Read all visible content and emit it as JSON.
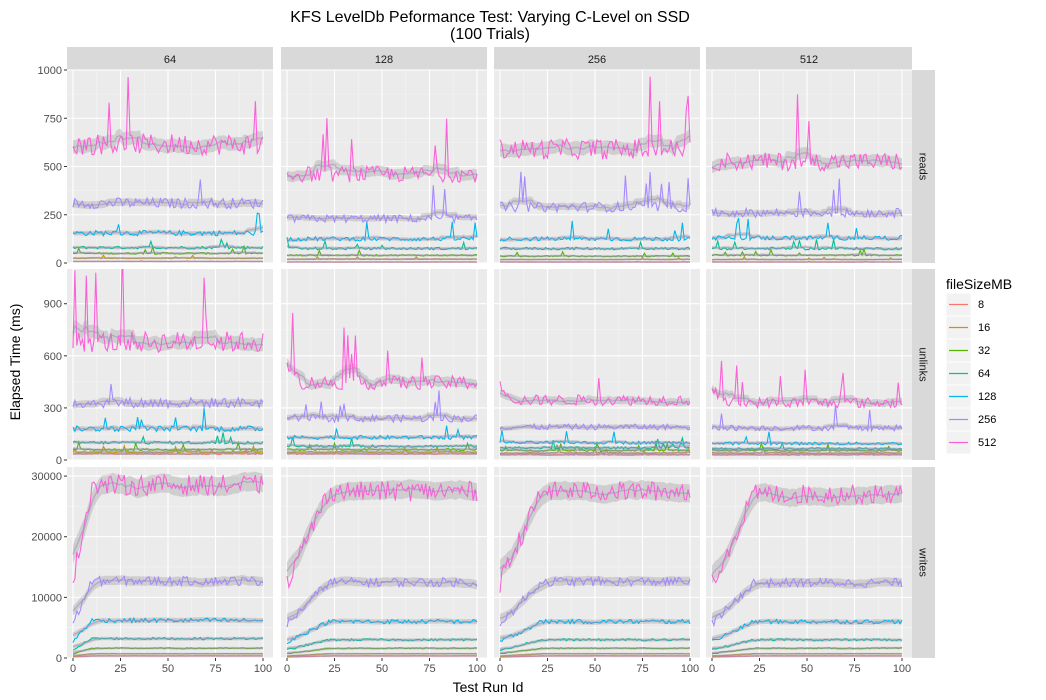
{
  "chart_data": {
    "type": "line",
    "title": "KFS LevelDb Peformance Test: Varying C-Level on SSD",
    "subtitle": "(100 Trials)",
    "xlabel": "Test Run Id",
    "ylabel": "Elapsed Time (ms)",
    "x_range": [
      0,
      100
    ],
    "x_ticks": [
      0,
      25,
      50,
      75,
      100
    ],
    "columns": [
      "64",
      "128",
      "256",
      "512"
    ],
    "rows": [
      {
        "name": "reads",
        "ylim": [
          0,
          1000
        ],
        "ticks": [
          0,
          250,
          500,
          750,
          1000
        ],
        "tick_labels": [
          "0",
          "250",
          "500",
          "750",
          "1000"
        ]
      },
      {
        "name": "unlinks",
        "ylim": [
          0,
          1100
        ],
        "ticks": [
          0,
          300,
          600,
          900
        ],
        "tick_labels": [
          "0",
          "300",
          "600",
          "900"
        ]
      },
      {
        "name": "writes",
        "ylim": [
          0,
          31500
        ],
        "ticks": [
          0,
          10000,
          20000,
          30000
        ],
        "tick_labels": [
          "0",
          "10000",
          "20000",
          "30000"
        ]
      }
    ],
    "legend": {
      "title": "fileSizeMB",
      "position": "right",
      "entries": [
        {
          "label": "8",
          "color": "#F8766D"
        },
        {
          "label": "16",
          "color": "#C49A00"
        },
        {
          "label": "32",
          "color": "#53B400"
        },
        {
          "label": "64",
          "color": "#00C094"
        },
        {
          "label": "128",
          "color": "#00B6EB"
        },
        {
          "label": "256",
          "color": "#A58AFF"
        },
        {
          "label": "512",
          "color": "#FB61D7"
        }
      ]
    },
    "series_levels": {
      "reads": {
        "64": [
          8,
          25,
          50,
          80,
          155,
          310,
          615
        ],
        "128": [
          5,
          20,
          40,
          75,
          125,
          230,
          460
        ],
        "256": [
          5,
          18,
          35,
          75,
          125,
          290,
          590
        ],
        "512": [
          5,
          18,
          40,
          75,
          130,
          260,
          525
        ]
      },
      "unlinks": {
        "64": [
          35,
          45,
          60,
          100,
          180,
          330,
          680
        ],
        "128": [
          35,
          45,
          60,
          80,
          130,
          240,
          445
        ],
        "256": [
          30,
          40,
          55,
          70,
          100,
          190,
          345
        ],
        "512": [
          30,
          40,
          55,
          65,
          95,
          185,
          330
        ]
      },
      "writes": {
        "64": [
          350,
          700,
          1600,
          3200,
          6200,
          12700,
          28500
        ],
        "128": [
          350,
          700,
          1600,
          3000,
          6000,
          12500,
          27500
        ],
        "256": [
          350,
          700,
          1600,
          3000,
          6000,
          12600,
          27500
        ],
        "512": [
          350,
          700,
          1600,
          3000,
          6000,
          12400,
          27000
        ]
      }
    },
    "notes_smooth": "loess smooth with grey confidence band per series",
    "grid": true,
    "panel_background": "#EBEBEB",
    "strip_background": "#D9D9D9"
  }
}
